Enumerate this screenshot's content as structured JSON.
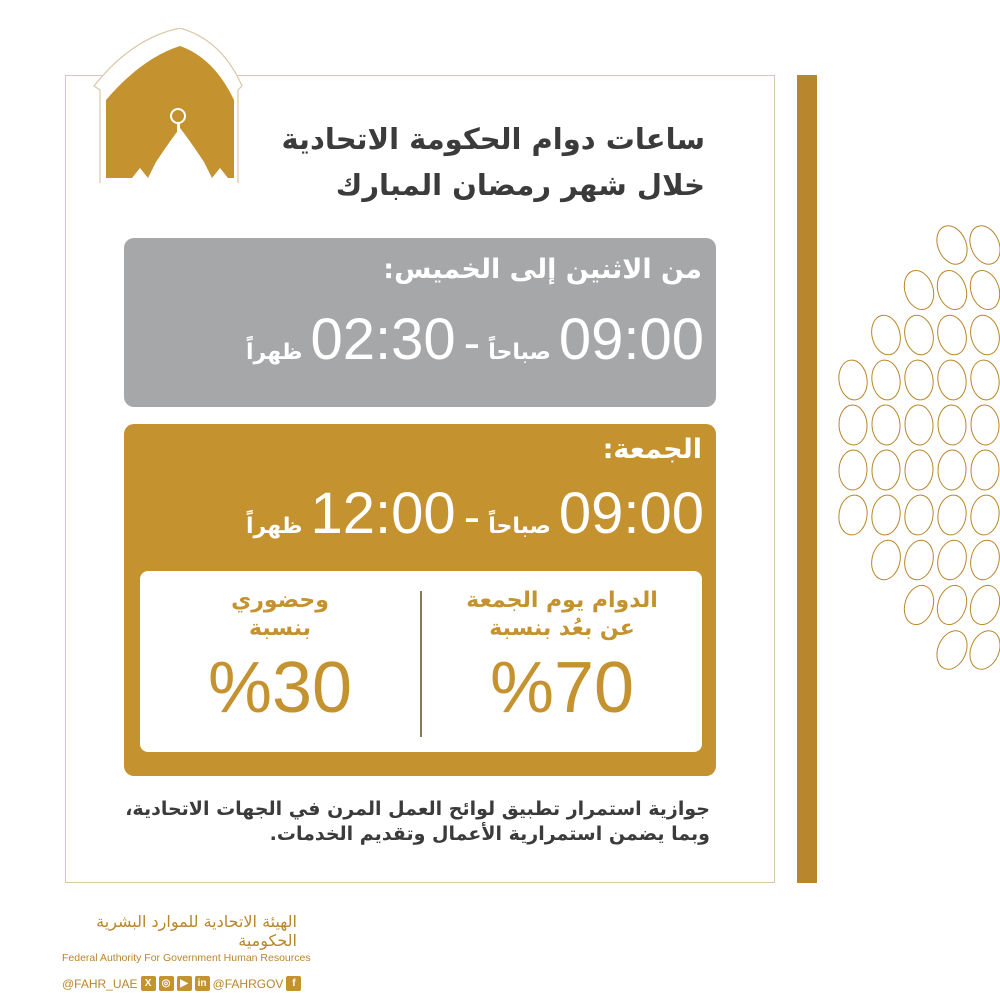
{
  "title": {
    "line1": "ساعات دوام الحكومة الاتحادية",
    "line2": "خلال شهر رمضان المبارك"
  },
  "weekdays": {
    "label": "من الاثنين إلى الخميس:",
    "start_time": "09:00",
    "start_suffix": "صباحاً",
    "dash": "-",
    "end_time": "02:30",
    "end_suffix": "ظهراً"
  },
  "friday": {
    "label": "الجمعة:",
    "start_time": "09:00",
    "start_suffix": "صباحاً",
    "dash": "-",
    "end_time": "12:00",
    "end_suffix": "ظهراً",
    "remote": {
      "text1": "الدوام يوم الجمعة",
      "text2": "عن بعُد بنسبة",
      "percent": "%70"
    },
    "onsite": {
      "text1": "وحضوري",
      "text2": "بنسبة",
      "percent": "%30"
    }
  },
  "note": {
    "line1": "جوازية استمرار تطبيق لوائح العمل المرن في الجهات الاتحادية،",
    "line2": "وبما يضمن استمرارية الأعمال وتقديم الخدمات."
  },
  "footer": {
    "org_ar": "الهيئة الاتحادية للموارد البشرية الحكومية",
    "org_en": "Federal Authority For Government Human Resources",
    "handle1": "@FAHR_UAE",
    "handle2": "@FAHRGOV",
    "icons": [
      "x-icon",
      "instagram-icon",
      "youtube-icon",
      "linkedin-icon",
      "facebook-icon"
    ]
  },
  "colors": {
    "gold": "#c4922f",
    "gray": "#a6a7a9",
    "text": "#3b3b3b"
  }
}
